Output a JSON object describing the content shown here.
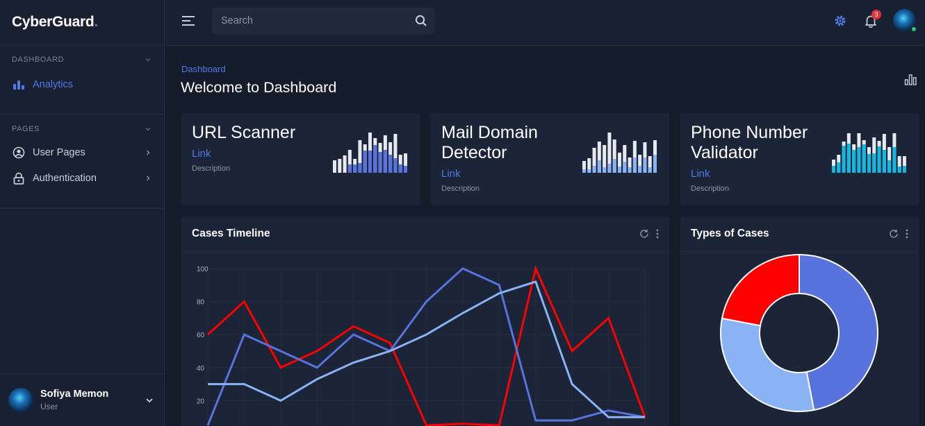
{
  "brand": {
    "name": "CyberGuard",
    "dot": "."
  },
  "sidebar": {
    "sections": [
      {
        "heading": "DASHBOARD",
        "items": [
          {
            "label": "Analytics",
            "icon": "bar-chart-icon",
            "active": true
          }
        ]
      },
      {
        "heading": "PAGES",
        "items": [
          {
            "label": "User Pages",
            "icon": "user-circle-icon"
          },
          {
            "label": "Authentication",
            "icon": "lock-icon"
          }
        ]
      }
    ],
    "user": {
      "name": "Sofiya Memon",
      "role": "User"
    }
  },
  "topbar": {
    "search_placeholder": "Search",
    "notification_count": "3"
  },
  "main": {
    "breadcrumb": "Dashboard",
    "title": "Welcome to Dashboard",
    "cards": [
      {
        "title": "URL Scanner",
        "link": "Link",
        "description": "Description",
        "color": "#5873de",
        "spark_top": [
          18,
          20,
          25,
          33,
          20,
          47,
          41,
          58,
          50,
          43,
          54,
          44,
          56,
          26,
          28
        ],
        "spark_bottom": [
          0,
          0,
          0,
          12,
          12,
          14,
          32,
          32,
          40,
          30,
          33,
          26,
          21,
          12,
          10
        ]
      },
      {
        "title": "Mail Domain Detector",
        "link": "Link",
        "description": "Description",
        "color": "#8ab3f6",
        "spark_top": [
          17,
          21,
          36,
          45,
          40,
          58,
          48,
          29,
          40,
          22,
          46,
          26,
          44,
          24,
          47
        ],
        "spark_bottom": [
          5,
          5,
          10,
          18,
          8,
          13,
          20,
          9,
          16,
          8,
          22,
          10,
          22,
          8,
          26
        ]
      },
      {
        "title": "Phone Number Validator",
        "link": "Link",
        "description": "Description",
        "color": "#13b8e2",
        "spark_top": [
          19,
          26,
          45,
          57,
          41,
          57,
          47,
          37,
          51,
          46,
          56,
          37,
          57,
          24,
          24
        ],
        "spark_bottom": [
          10,
          15,
          39,
          42,
          33,
          37,
          41,
          27,
          28,
          38,
          33,
          18,
          37,
          9,
          10
        ]
      }
    ],
    "timeline": {
      "title": "Cases Timeline"
    },
    "types": {
      "title": "Types of Cases"
    }
  },
  "chart_data": [
    {
      "type": "line",
      "title": "Cases Timeline",
      "x": [
        1,
        2,
        3,
        4,
        5,
        6,
        7,
        8,
        9,
        10,
        11,
        12,
        13
      ],
      "ylim": [
        0,
        100
      ],
      "yticks": [
        20,
        40,
        60,
        80,
        100
      ],
      "grid": true,
      "series": [
        {
          "color": "#ff0000",
          "values": [
            60,
            80,
            40,
            50,
            65,
            55,
            5,
            6,
            5,
            100,
            50,
            70,
            10
          ]
        },
        {
          "color": "#5873de",
          "values": [
            5,
            60,
            50,
            40,
            60,
            50,
            80,
            100,
            90,
            8,
            8,
            14,
            10
          ]
        },
        {
          "color": "#8ab3f6",
          "values": [
            30,
            30,
            20,
            33,
            43,
            50,
            60,
            73,
            85,
            92,
            30,
            10,
            10
          ]
        }
      ]
    },
    {
      "type": "pie",
      "title": "Types of Cases",
      "donut": true,
      "slices": [
        {
          "color": "#5873de",
          "value": 47
        },
        {
          "color": "#8ab3f6",
          "value": 31
        },
        {
          "color": "#ff0000",
          "value": 22
        }
      ]
    }
  ]
}
